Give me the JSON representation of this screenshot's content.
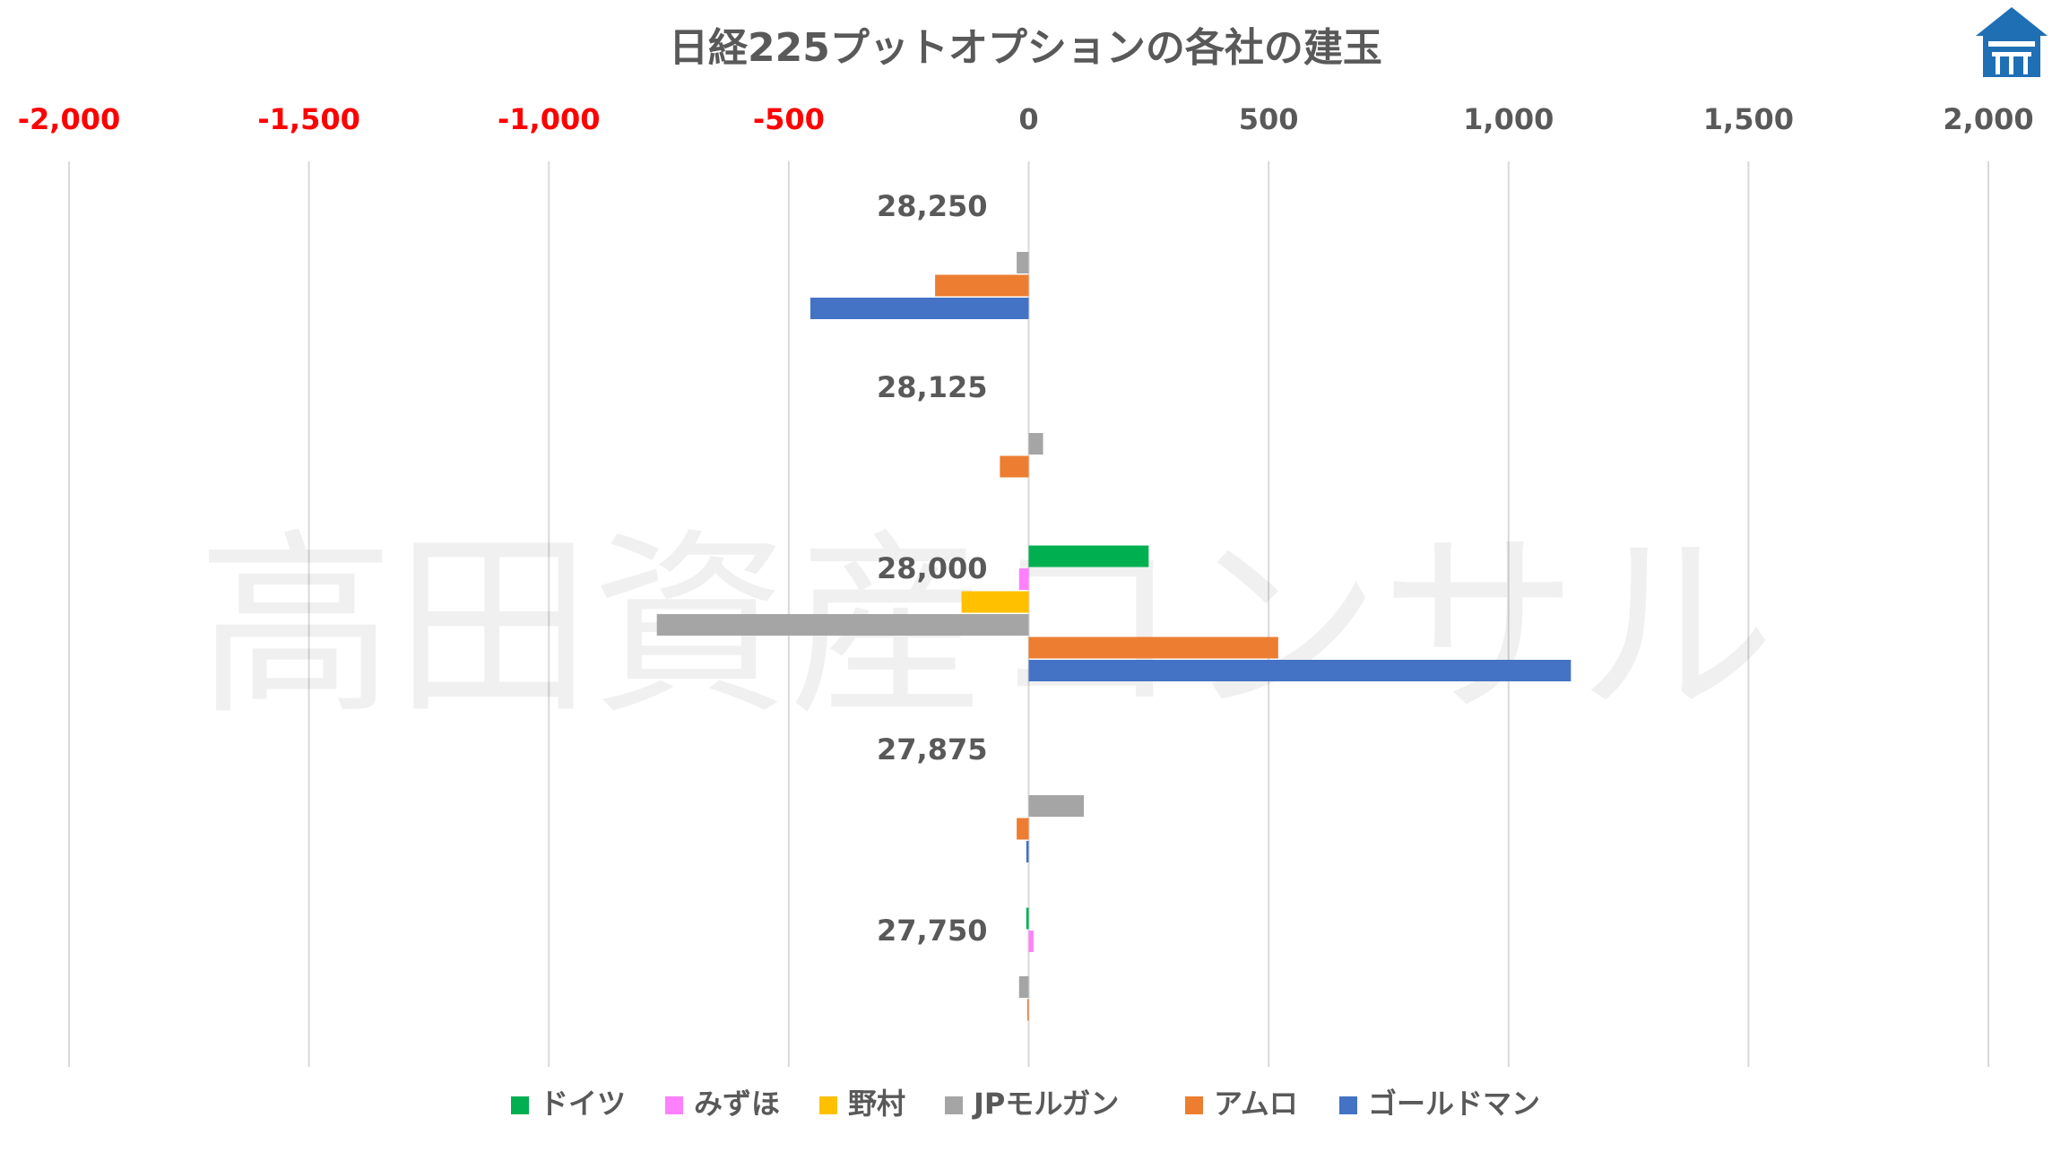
{
  "chart_data": {
    "type": "bar",
    "orientation": "horizontal",
    "title": "日経225プットオプションの各社の建玉",
    "x_axis_position": "top",
    "xlim": [
      -2000,
      2000
    ],
    "x_ticks": [
      -2000,
      -1500,
      -1000,
      -500,
      0,
      500,
      1000,
      1500,
      2000
    ],
    "x_tick_labels": [
      "-2,000",
      "-1,500",
      "-1,000",
      "-500",
      "0",
      "500",
      "1,000",
      "1,500",
      "2,000"
    ],
    "negative_tick_color": "#ff0000",
    "positive_tick_color": "#595959",
    "grid": "vertical",
    "legend_position": "bottom",
    "categories": [
      "28,250",
      "28,125",
      "28,000",
      "27,875",
      "27,750"
    ],
    "series": [
      {
        "name": "ドイツ",
        "color": "#00b050",
        "values": [
          0,
          0,
          250,
          0,
          -5
        ]
      },
      {
        "name": "みずほ",
        "color": "#ff80ff",
        "values": [
          0,
          0,
          -20,
          0,
          10
        ]
      },
      {
        "name": "野村",
        "color": "#ffc000",
        "values": [
          0,
          0,
          -140,
          0,
          0
        ]
      },
      {
        "name": "JPモルガン",
        "color": "#a5a5a5",
        "values": [
          -25,
          30,
          -775,
          115,
          -20
        ]
      },
      {
        "name": "アムロ",
        "color": "#ed7d31",
        "values": [
          -195,
          -60,
          520,
          -25,
          -3
        ]
      },
      {
        "name": "ゴールドマン",
        "color": "#4472c4",
        "values": [
          -455,
          0,
          1130,
          -5,
          0
        ]
      }
    ]
  },
  "watermark": "高田資産コンサル",
  "logo": {
    "icon": "house-logo-icon",
    "color": "#1f6fb5"
  }
}
